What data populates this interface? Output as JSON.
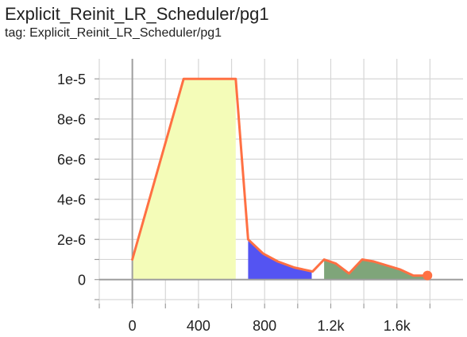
{
  "card": {
    "title": "Explicit_Reinit_LR_Scheduler/pg1",
    "tag": "tag: Explicit_Reinit_LR_Scheduler/pg1"
  },
  "chart_data": {
    "type": "line",
    "title": "Explicit_Reinit_LR_Scheduler/pg1",
    "xlabel": "",
    "ylabel": "",
    "xlim": [
      -200,
      2000
    ],
    "ylim": [
      -1.2e-06,
      1.1e-05
    ],
    "grid": true,
    "legend": "none",
    "x_ticks": [
      {
        "value": 0,
        "label": "0"
      },
      {
        "value": 400,
        "label": "400"
      },
      {
        "value": 800,
        "label": "800"
      },
      {
        "value": 1200,
        "label": "1.2k"
      },
      {
        "value": 1600,
        "label": "1.6k"
      }
    ],
    "x_minor_ticks": [
      -200,
      200,
      600,
      1000,
      1400,
      1800
    ],
    "y_ticks": [
      {
        "value": 0,
        "label": "0"
      },
      {
        "value": 2e-06,
        "label": "2e-6"
      },
      {
        "value": 4e-06,
        "label": "4e-6"
      },
      {
        "value": 6e-06,
        "label": "6e-6"
      },
      {
        "value": 8e-06,
        "label": "8e-6"
      },
      {
        "value": 1e-05,
        "label": "1e-5"
      }
    ],
    "y_minor_ticks": [
      -1e-06,
      1e-06,
      3e-06,
      5e-06,
      7e-06,
      9e-06
    ],
    "series": [
      {
        "line_color": "#ff7043",
        "x": [
          0,
          310,
          625,
          700,
          790,
          880,
          980,
          1090,
          1160,
          1230,
          1310,
          1390,
          1460,
          1540,
          1620,
          1700,
          1785
        ],
        "values": [
          1e-06,
          1e-05,
          1e-05,
          2e-06,
          1.3e-06,
          9e-07,
          6e-07,
          4e-07,
          1e-06,
          8e-07,
          3e-07,
          1e-06,
          9e-07,
          7e-07,
          5e-07,
          2e-07,
          2e-07
        ]
      }
    ],
    "shaded_regions": [
      {
        "color": "#f4fcb8",
        "x": [
          0,
          310,
          625,
          625,
          0
        ],
        "values": [
          1e-06,
          1e-05,
          1e-05,
          0,
          0
        ]
      },
      {
        "color": "#5454f2",
        "x": [
          700,
          790,
          880,
          980,
          1085,
          1085,
          700
        ],
        "values": [
          2e-06,
          1.3e-06,
          9e-07,
          6e-07,
          4e-07,
          0,
          0
        ]
      },
      {
        "color": "#7fa57a",
        "x": [
          1160,
          1230,
          1310,
          1390,
          1460,
          1540,
          1620,
          1700,
          1775,
          1775,
          1160
        ],
        "values": [
          1e-06,
          8e-07,
          3e-07,
          1e-06,
          9e-07,
          7e-07,
          5e-07,
          2e-07,
          2e-07,
          0,
          0
        ]
      }
    ],
    "end_marker": {
      "x": 1785,
      "value": 2e-07,
      "color": "#ff7043"
    },
    "colors": {
      "axis": "#9e9e9e",
      "grid": "#d6d6d6",
      "tick_mark": "#9e9e9e"
    }
  }
}
